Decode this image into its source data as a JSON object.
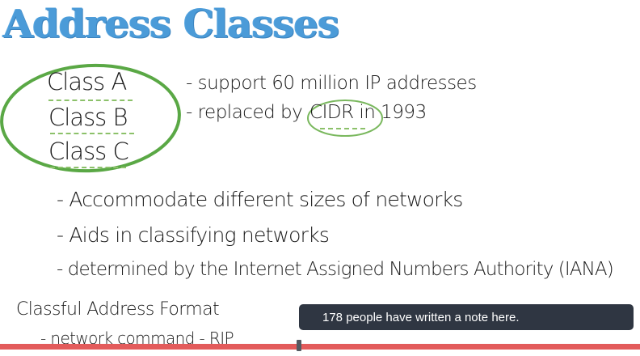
{
  "slide": {
    "title": "Address Classes",
    "classes": [
      "Class A",
      "Class B",
      "Class C"
    ],
    "class_notes": [
      "- support 60 million IP addresses"
    ],
    "replaced": {
      "prefix": "- replaced by",
      "cidr": "CIDR",
      "suffix": "in 1993"
    },
    "bullets": [
      "-  Accommodate different sizes of networks",
      "-  Aids in classifying networks",
      "- determined by the Internet Assigned Numbers Authority (IANA)"
    ],
    "classful": {
      "heading": "Classful Address Format",
      "sub": "- network command - RIP"
    }
  },
  "notes_popup": {
    "text": "178 people have written a note here."
  },
  "player": {
    "progress_fraction": 0.467
  },
  "colors": {
    "title": "#4b9bd8",
    "circle": "#5aa845",
    "progress": "#e35b5b",
    "popup_bg": "#2f3642"
  }
}
